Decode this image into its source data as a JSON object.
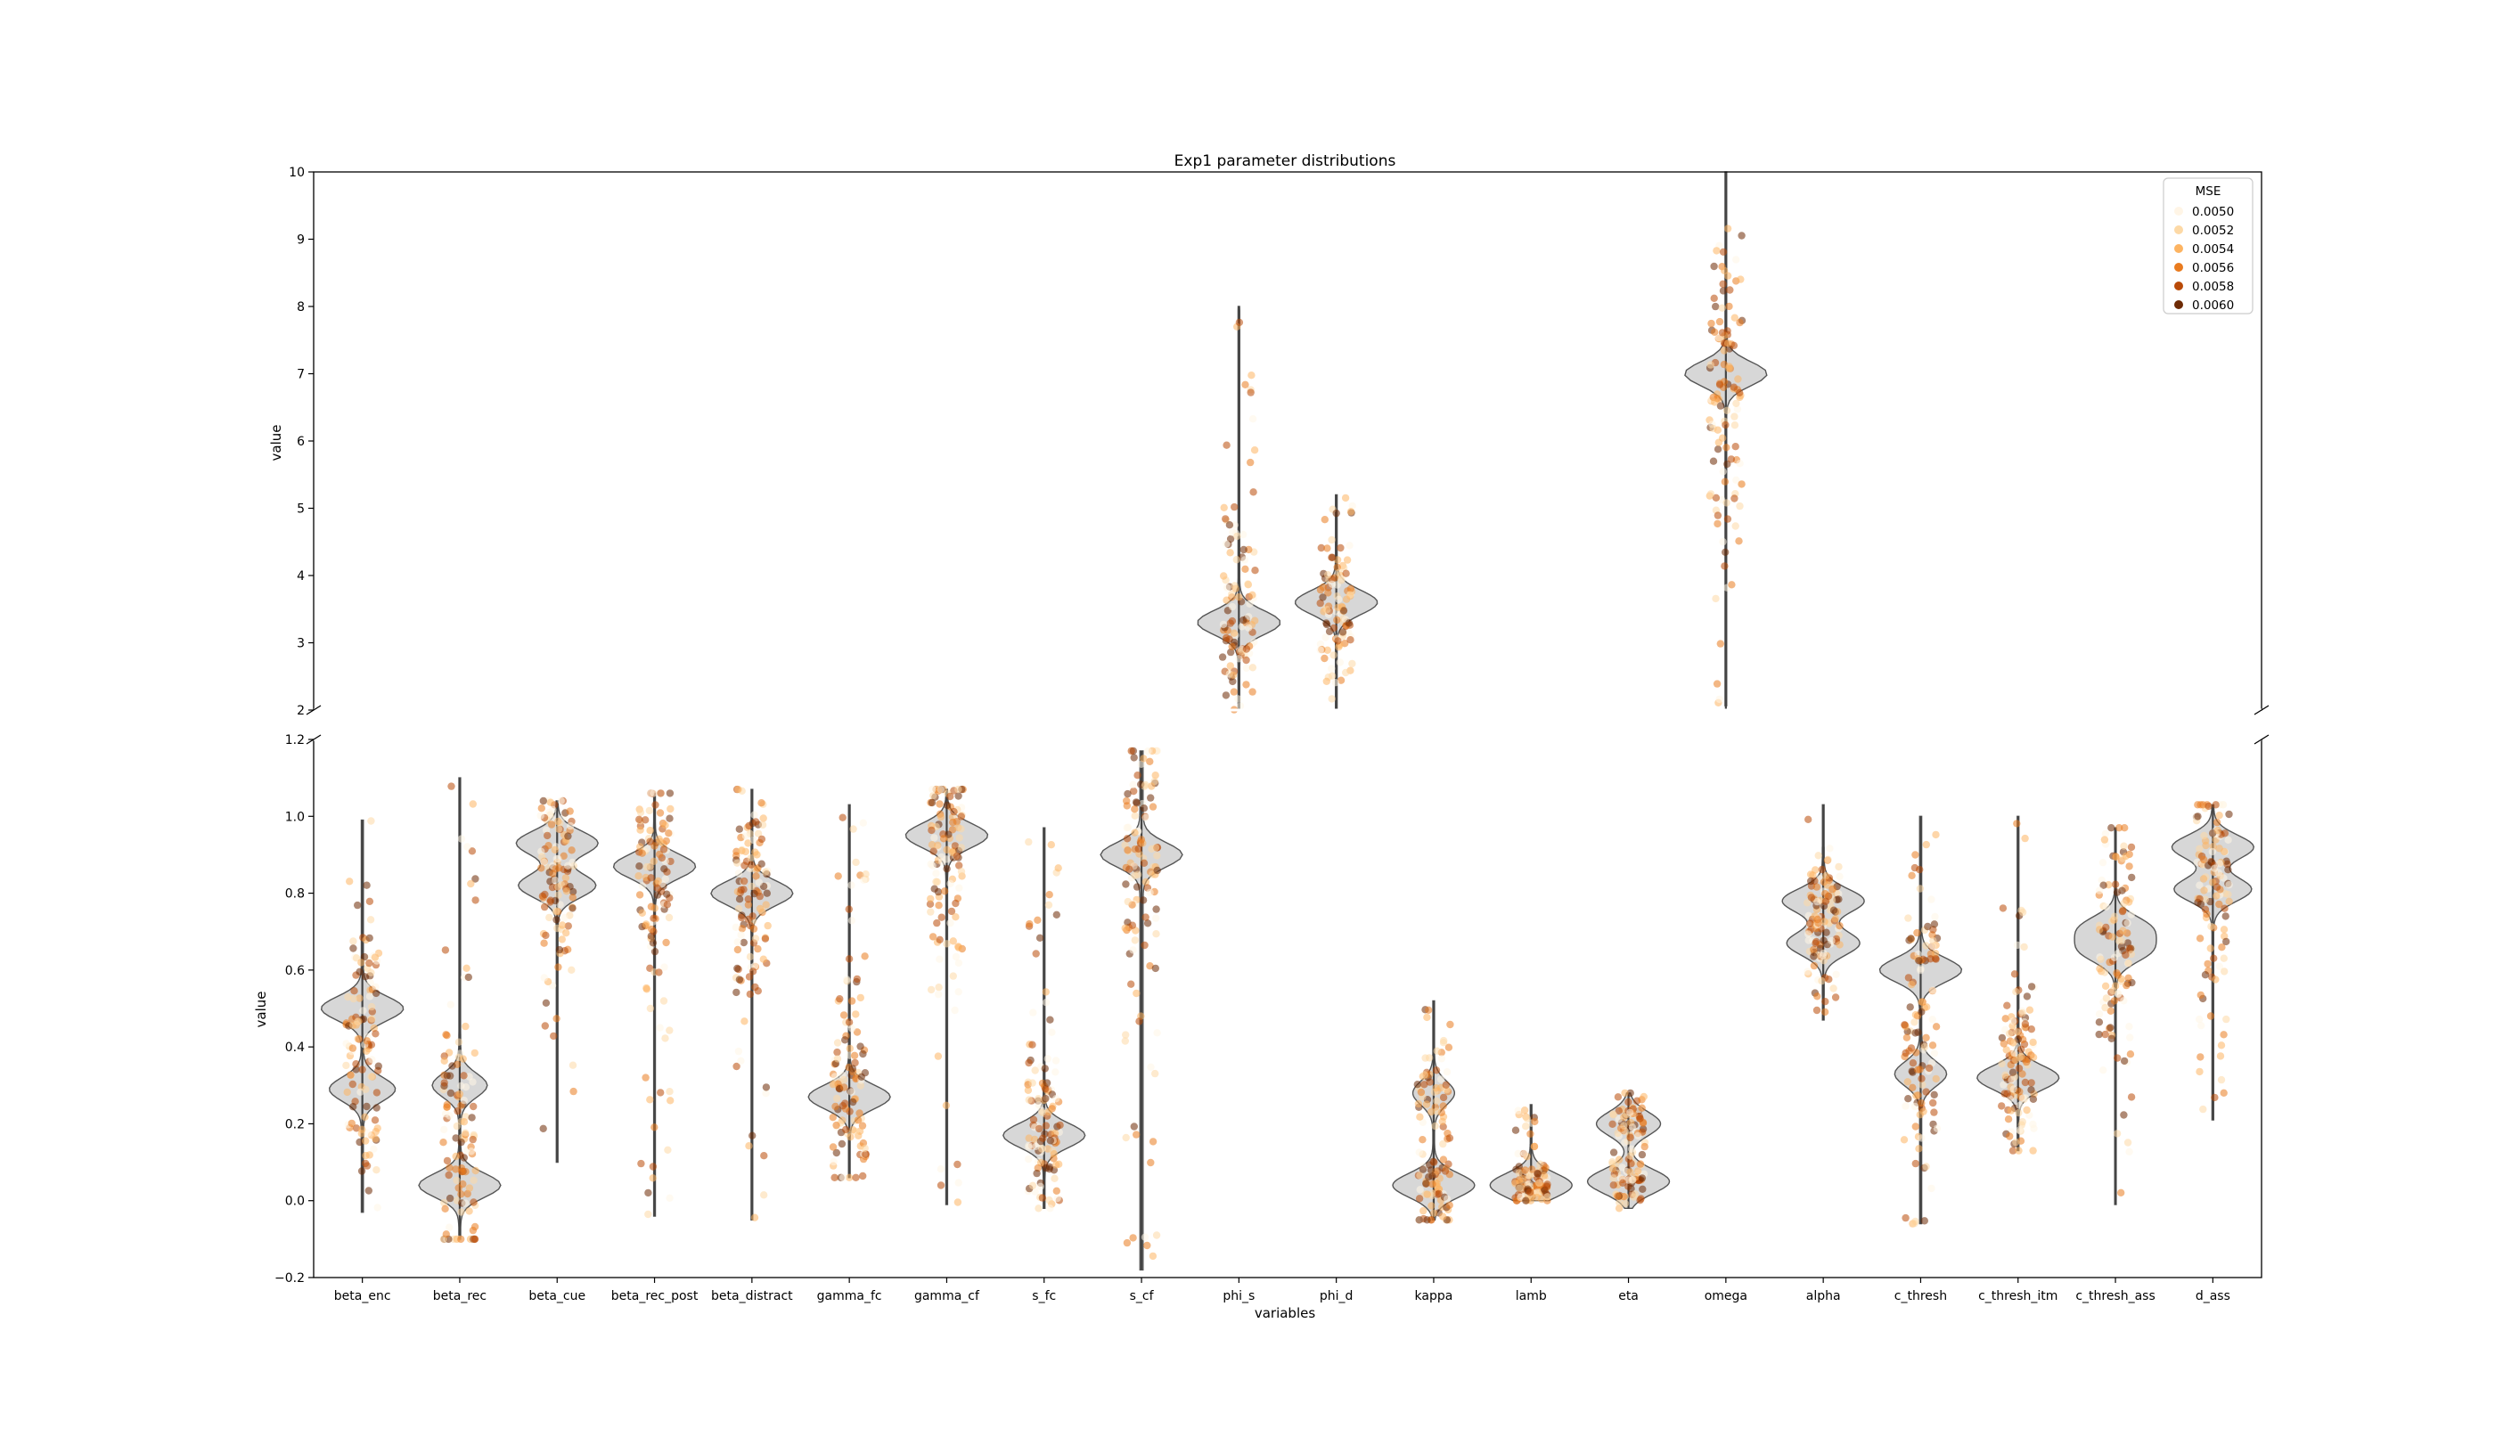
{
  "chart_data": {
    "type": "violin",
    "title": "Exp1 parameter distributions",
    "xlabel": "variables",
    "ylabel_top": "value",
    "ylabel_bottom": "value",
    "categories": [
      "beta_enc",
      "beta_rec",
      "beta_cue",
      "beta_rec_post",
      "beta_distract",
      "gamma_fc",
      "gamma_cf",
      "s_fc",
      "s_cf",
      "phi_s",
      "phi_d",
      "kappa",
      "lamb",
      "eta",
      "omega",
      "alpha",
      "c_thresh",
      "c_thresh_itm",
      "c_thresh_ass",
      "d_ass"
    ],
    "top_axis": {
      "ylim": [
        2,
        10
      ],
      "ticks": [
        "2",
        "3",
        "4",
        "5",
        "6",
        "7",
        "8",
        "9",
        "10"
      ]
    },
    "bottom_axis": {
      "ylim": [
        -0.2,
        1.2
      ],
      "ticks": [
        "−0.2",
        "0.0",
        "0.2",
        "0.4",
        "0.6",
        "0.8",
        "1.0",
        "1.2"
      ]
    },
    "legend": {
      "title": "MSE",
      "placement": "top-right",
      "entries": [
        {
          "label": "0.0050",
          "color": "#fff5e6"
        },
        {
          "label": "0.0052",
          "color": "#fdd9a6"
        },
        {
          "label": "0.0054",
          "color": "#fdb462"
        },
        {
          "label": "0.0056",
          "color": "#e97b1f"
        },
        {
          "label": "0.0058",
          "color": "#b94a07"
        },
        {
          "label": "0.0060",
          "color": "#6d2a04"
        }
      ]
    },
    "series": [
      {
        "name": "beta_enc",
        "panel": "bottom",
        "range": [
          -0.03,
          0.99
        ],
        "modes": [
          [
            0.29,
            0.6
          ],
          [
            0.5,
            0.75
          ]
        ]
      },
      {
        "name": "beta_rec",
        "panel": "bottom",
        "range": [
          -0.1,
          1.1
        ],
        "modes": [
          [
            0.04,
            0.9
          ],
          [
            0.3,
            0.6
          ]
        ]
      },
      {
        "name": "beta_cue",
        "panel": "bottom",
        "range": [
          0.1,
          1.04
        ],
        "modes": [
          [
            0.82,
            0.9
          ],
          [
            0.93,
            0.95
          ]
        ]
      },
      {
        "name": "beta_rec_post",
        "panel": "bottom",
        "range": [
          -0.04,
          1.06
        ],
        "modes": [
          [
            0.87,
            1.0
          ]
        ]
      },
      {
        "name": "beta_distract",
        "panel": "bottom",
        "range": [
          -0.05,
          1.07
        ],
        "modes": [
          [
            0.8,
            1.0
          ]
        ]
      },
      {
        "name": "gamma_fc",
        "panel": "bottom",
        "range": [
          0.06,
          1.03
        ],
        "modes": [
          [
            0.27,
            1.0
          ]
        ]
      },
      {
        "name": "gamma_cf",
        "panel": "bottom",
        "range": [
          -0.01,
          1.07
        ],
        "modes": [
          [
            0.95,
            1.0
          ]
        ]
      },
      {
        "name": "s_fc",
        "panel": "bottom",
        "range": [
          -0.02,
          0.97
        ],
        "modes": [
          [
            0.17,
            1.0
          ]
        ]
      },
      {
        "name": "s_cf",
        "panel": "bottom",
        "range": [
          -0.18,
          1.17
        ],
        "modes": [
          [
            0.9,
            0.5
          ]
        ]
      },
      {
        "name": "phi_s",
        "panel": "top",
        "range": [
          0.43,
          8.0
        ],
        "modes": [
          [
            3.3,
            1.0
          ]
        ]
      },
      {
        "name": "phi_d",
        "panel": "top",
        "range": [
          -0.05,
          5.2
        ],
        "modes": [
          [
            3.6,
            1.0
          ]
        ]
      },
      {
        "name": "kappa",
        "panel": "bottom",
        "range": [
          -0.05,
          0.52
        ],
        "modes": [
          [
            0.04,
            1.0
          ],
          [
            0.28,
            0.5
          ]
        ]
      },
      {
        "name": "lamb",
        "panel": "bottom",
        "range": [
          0.0,
          0.25
        ],
        "modes": [
          [
            0.04,
            1.0
          ]
        ]
      },
      {
        "name": "eta",
        "panel": "bottom",
        "range": [
          -0.02,
          0.28
        ],
        "modes": [
          [
            0.05,
            0.9
          ],
          [
            0.2,
            0.7
          ]
        ]
      },
      {
        "name": "omega",
        "panel": "top",
        "range": [
          0.93,
          10.0
        ],
        "modes": [
          [
            7.0,
            1.0
          ]
        ]
      },
      {
        "name": "alpha",
        "panel": "bottom",
        "range": [
          0.47,
          1.03
        ],
        "modes": [
          [
            0.67,
            0.8
          ],
          [
            0.78,
            0.9
          ]
        ]
      },
      {
        "name": "c_thresh",
        "panel": "bottom",
        "range": [
          -0.06,
          1.0
        ],
        "modes": [
          [
            0.33,
            0.5
          ],
          [
            0.6,
            0.8
          ]
        ]
      },
      {
        "name": "c_thresh_itm",
        "panel": "bottom",
        "range": [
          0.13,
          1.0
        ],
        "modes": [
          [
            0.32,
            1.0
          ]
        ]
      },
      {
        "name": "c_thresh_ass",
        "panel": "bottom",
        "range": [
          -0.01,
          0.97
        ],
        "modes": [
          [
            0.65,
            0.9
          ],
          [
            0.71,
            0.9
          ]
        ]
      },
      {
        "name": "d_ass",
        "panel": "bottom",
        "range": [
          0.21,
          1.03
        ],
        "modes": [
          [
            0.81,
            0.9
          ],
          [
            0.92,
            0.95
          ]
        ]
      }
    ],
    "grid": false
  }
}
